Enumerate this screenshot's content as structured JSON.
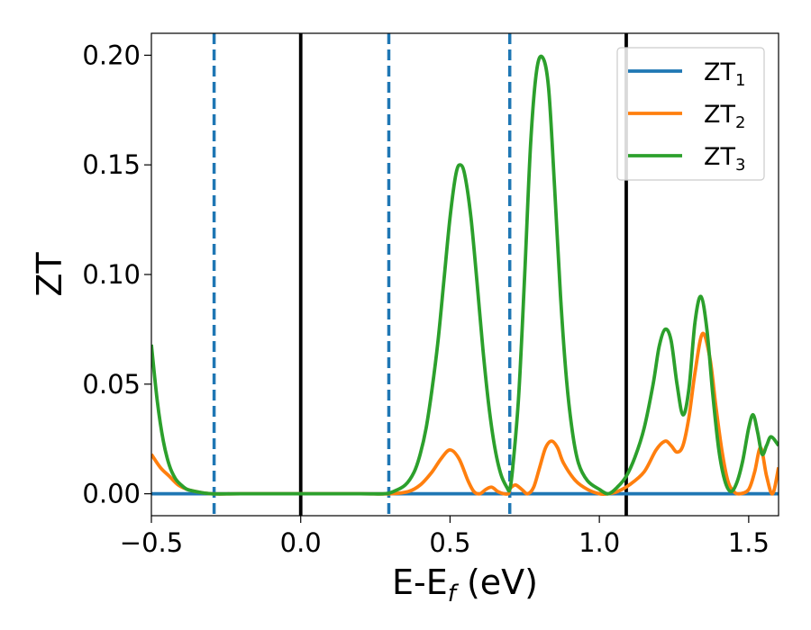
{
  "chart_data": {
    "type": "line",
    "xlabel": "E-E",
    "xlabel_sub": "f",
    "xlabel_unit": " (eV)",
    "ylabel": "ZT",
    "xlim": [
      -0.5,
      1.6
    ],
    "ylim": [
      -0.01,
      0.21
    ],
    "xticks": [
      -0.5,
      0.0,
      0.5,
      1.0,
      1.5
    ],
    "xtick_labels": [
      "−0.5",
      "0.0",
      "0.5",
      "1.0",
      "1.5"
    ],
    "yticks": [
      0.0,
      0.05,
      0.1,
      0.15,
      0.2
    ],
    "ytick_labels": [
      "0.00",
      "0.05",
      "0.10",
      "0.15",
      "0.20"
    ],
    "grid": false,
    "legend_position": "top-right",
    "vlines": [
      {
        "x": -0.29,
        "style": "dashed",
        "color": "#1f77b4"
      },
      {
        "x": 0.0,
        "style": "solid",
        "color": "#000000"
      },
      {
        "x": 0.295,
        "style": "dashed",
        "color": "#1f77b4"
      },
      {
        "x": 0.7,
        "style": "dashed",
        "color": "#1f77b4"
      },
      {
        "x": 1.09,
        "style": "solid",
        "color": "#000000"
      }
    ],
    "series": [
      {
        "name": "ZT",
        "name_sub": "1",
        "color": "#1f77b4",
        "x": [
          -0.5,
          1.6
        ],
        "y": [
          0.0,
          0.0
        ]
      },
      {
        "name": "ZT",
        "name_sub": "2",
        "color": "#ff7f0e",
        "x": [
          -0.5,
          -0.47,
          -0.44,
          -0.41,
          -0.38,
          -0.35,
          -0.3,
          -0.2,
          0.0,
          0.2,
          0.3,
          0.36,
          0.4,
          0.44,
          0.47,
          0.5,
          0.53,
          0.56,
          0.58,
          0.6,
          0.62,
          0.64,
          0.66,
          0.68,
          0.695,
          0.7,
          0.705,
          0.72,
          0.74,
          0.76,
          0.78,
          0.8,
          0.82,
          0.84,
          0.86,
          0.88,
          0.92,
          0.96,
          1.0,
          1.03,
          1.06,
          1.1,
          1.15,
          1.19,
          1.22,
          1.24,
          1.26,
          1.28,
          1.3,
          1.32,
          1.345,
          1.37,
          1.39,
          1.41,
          1.43,
          1.45,
          1.47,
          1.5,
          1.52,
          1.54,
          1.56,
          1.58,
          1.6
        ],
        "y": [
          0.018,
          0.012,
          0.008,
          0.004,
          0.002,
          0.001,
          0.0,
          0.0,
          0.0,
          0.0,
          0.0,
          0.001,
          0.004,
          0.01,
          0.016,
          0.02,
          0.016,
          0.006,
          0.001,
          0.0,
          0.002,
          0.003,
          0.001,
          0.0,
          0.0,
          0.002,
          0.003,
          0.004,
          0.002,
          0.0,
          0.003,
          0.012,
          0.021,
          0.024,
          0.021,
          0.014,
          0.006,
          0.002,
          0.0,
          0.0,
          0.001,
          0.004,
          0.01,
          0.02,
          0.024,
          0.022,
          0.019,
          0.022,
          0.035,
          0.055,
          0.073,
          0.062,
          0.04,
          0.02,
          0.006,
          0.001,
          0.0,
          0.002,
          0.01,
          0.021,
          0.008,
          0.0,
          0.012
        ]
      },
      {
        "name": "ZT",
        "name_sub": "3",
        "color": "#2ca02c",
        "x": [
          -0.5,
          -0.48,
          -0.46,
          -0.44,
          -0.42,
          -0.4,
          -0.38,
          -0.35,
          -0.3,
          -0.2,
          0.0,
          0.2,
          0.28,
          0.31,
          0.35,
          0.38,
          0.4,
          0.42,
          0.44,
          0.46,
          0.48,
          0.5,
          0.52,
          0.535,
          0.55,
          0.57,
          0.59,
          0.61,
          0.63,
          0.65,
          0.67,
          0.69,
          0.7,
          0.71,
          0.73,
          0.75,
          0.77,
          0.79,
          0.81,
          0.83,
          0.85,
          0.87,
          0.89,
          0.91,
          0.93,
          0.96,
          1.0,
          1.03,
          1.06,
          1.09,
          1.12,
          1.15,
          1.18,
          1.2,
          1.22,
          1.24,
          1.26,
          1.28,
          1.3,
          1.32,
          1.34,
          1.36,
          1.38,
          1.4,
          1.42,
          1.44,
          1.46,
          1.48,
          1.5,
          1.515,
          1.53,
          1.545,
          1.56,
          1.575,
          1.6
        ],
        "y": [
          0.068,
          0.042,
          0.024,
          0.013,
          0.007,
          0.004,
          0.002,
          0.001,
          0.0,
          0.0,
          0.0,
          0.0,
          0.0,
          0.001,
          0.004,
          0.01,
          0.018,
          0.03,
          0.048,
          0.07,
          0.098,
          0.126,
          0.146,
          0.15,
          0.145,
          0.126,
          0.097,
          0.066,
          0.04,
          0.021,
          0.009,
          0.003,
          0.002,
          0.012,
          0.045,
          0.1,
          0.16,
          0.193,
          0.199,
          0.185,
          0.14,
          0.09,
          0.052,
          0.028,
          0.014,
          0.006,
          0.002,
          0.0,
          0.003,
          0.008,
          0.017,
          0.03,
          0.05,
          0.067,
          0.075,
          0.07,
          0.05,
          0.036,
          0.048,
          0.078,
          0.09,
          0.075,
          0.045,
          0.02,
          0.006,
          0.001,
          0.005,
          0.015,
          0.03,
          0.036,
          0.028,
          0.018,
          0.022,
          0.026,
          0.022
        ]
      }
    ]
  }
}
